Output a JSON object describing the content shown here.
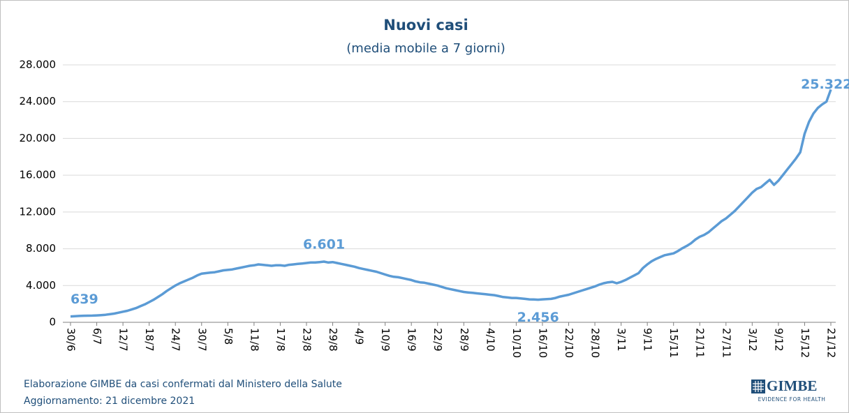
{
  "chart_data": {
    "type": "line",
    "title": "Nuovi casi",
    "subtitle": "(media mobile a 7 giorni)",
    "footer": [
      "Elaborazione GIMBE da casi confermati dal Ministero della Salute",
      "Aggiornamento: 21 dicembre 2021"
    ],
    "logo": {
      "name": "GIMBE",
      "tagline": "EVIDENCE FOR HEALTH"
    },
    "grid": true,
    "ylim": [
      0,
      28000
    ],
    "yticks": [
      0,
      {
        "value": 4000,
        "label": "4.000"
      },
      {
        "value": 8000,
        "label": "8.000"
      },
      {
        "value": 12000,
        "label": "12.000"
      },
      {
        "value": 16000,
        "label": "16.000"
      },
      {
        "value": 20000,
        "label": "20.000"
      },
      {
        "value": 24000,
        "label": "24.000"
      },
      {
        "value": 28000,
        "label": "28.000"
      }
    ],
    "categories": [
      "30/6",
      null,
      null,
      null,
      null,
      null,
      "6/7",
      null,
      null,
      null,
      null,
      null,
      "12/7",
      null,
      null,
      null,
      null,
      null,
      "18/7",
      null,
      null,
      null,
      null,
      null,
      "24/7",
      null,
      null,
      null,
      null,
      null,
      "30/7",
      null,
      null,
      null,
      null,
      null,
      "5/8",
      null,
      null,
      null,
      null,
      null,
      "11/8",
      null,
      null,
      null,
      null,
      null,
      "17/8",
      null,
      null,
      null,
      null,
      null,
      "23/8",
      null,
      null,
      null,
      null,
      null,
      "29/8",
      null,
      null,
      null,
      null,
      null,
      "4/9",
      null,
      null,
      null,
      null,
      null,
      "10/9",
      null,
      null,
      null,
      null,
      null,
      "16/9",
      null,
      null,
      null,
      null,
      null,
      "22/9",
      null,
      null,
      null,
      null,
      null,
      "28/9",
      null,
      null,
      null,
      null,
      null,
      "4/10",
      null,
      null,
      null,
      null,
      null,
      "10/10",
      null,
      null,
      null,
      null,
      null,
      "16/10",
      null,
      null,
      null,
      null,
      null,
      "22/10",
      null,
      null,
      null,
      null,
      null,
      "28/10",
      null,
      null,
      null,
      null,
      null,
      "3/11",
      null,
      null,
      null,
      null,
      null,
      "9/11",
      null,
      null,
      null,
      null,
      null,
      "15/11",
      null,
      null,
      null,
      null,
      null,
      "21/11",
      null,
      null,
      null,
      null,
      null,
      "27/11",
      null,
      null,
      null,
      null,
      null,
      "3/12",
      null,
      null,
      null,
      null,
      null,
      "9/12",
      null,
      null,
      null,
      null,
      null,
      "15/12",
      null,
      null,
      null,
      null,
      null,
      "21/12"
    ],
    "series": [
      {
        "name": "Nuovi casi",
        "color": "#5b9bd5",
        "values": [
          639,
          660,
          690,
          710,
          720,
          730,
          750,
          780,
          820,
          880,
          950,
          1050,
          1150,
          1250,
          1400,
          1550,
          1750,
          1950,
          2200,
          2450,
          2750,
          3050,
          3400,
          3700,
          4000,
          4250,
          4450,
          4650,
          4850,
          5100,
          5300,
          5350,
          5400,
          5450,
          5550,
          5650,
          5700,
          5750,
          5850,
          5950,
          6050,
          6150,
          6200,
          6300,
          6250,
          6200,
          6150,
          6200,
          6200,
          6150,
          6250,
          6300,
          6350,
          6400,
          6450,
          6500,
          6500,
          6550,
          6601,
          6500,
          6550,
          6450,
          6350,
          6250,
          6150,
          6050,
          5900,
          5800,
          5700,
          5600,
          5500,
          5350,
          5200,
          5050,
          4950,
          4900,
          4800,
          4700,
          4600,
          4450,
          4350,
          4300,
          4200,
          4100,
          4000,
          3850,
          3700,
          3600,
          3500,
          3400,
          3300,
          3250,
          3200,
          3150,
          3100,
          3050,
          3000,
          2950,
          2850,
          2750,
          2700,
          2650,
          2650,
          2600,
          2550,
          2500,
          2480,
          2456,
          2500,
          2520,
          2550,
          2650,
          2800,
          2900,
          3000,
          3150,
          3300,
          3450,
          3600,
          3750,
          3900,
          4100,
          4250,
          4350,
          4400,
          4250,
          4400,
          4600,
          4850,
          5100,
          5350,
          5900,
          6300,
          6650,
          6900,
          7100,
          7300,
          7400,
          7500,
          7750,
          8050,
          8300,
          8600,
          9000,
          9300,
          9500,
          9800,
          10200,
          10600,
          11000,
          11300,
          11700,
          12100,
          12600,
          13100,
          13600,
          14100,
          14500,
          14700,
          15100,
          15500,
          14950,
          15400,
          16000,
          16600,
          17200,
          17800,
          18500,
          20500,
          21800,
          22700,
          23300,
          23700,
          24000,
          25322
        ],
        "value_labels": [
          "639",
          null,
          null,
          null,
          null,
          null,
          null,
          null,
          null,
          null,
          null,
          null,
          null,
          null,
          null,
          null,
          null,
          null,
          null,
          null,
          null,
          null,
          null,
          null,
          null,
          null,
          null,
          null,
          null,
          null,
          null,
          null,
          null,
          null,
          null,
          null,
          null,
          null,
          null,
          null,
          null,
          null,
          null,
          null,
          null,
          null,
          null,
          null,
          null,
          null,
          null,
          null,
          null,
          null,
          null,
          null,
          null,
          null,
          "6.601",
          null,
          null,
          null,
          null,
          null,
          null,
          null,
          null,
          null,
          null,
          null,
          null,
          null,
          null,
          null,
          null,
          null,
          null,
          null,
          null,
          null,
          null,
          null,
          null,
          null,
          null,
          null,
          null,
          null,
          null,
          null,
          null,
          null,
          null,
          null,
          null,
          null,
          null,
          null,
          null,
          null,
          null,
          null,
          null,
          null,
          null,
          null,
          null,
          "2.456",
          null,
          null,
          null,
          null,
          null,
          null,
          null,
          null,
          null,
          null,
          null,
          null,
          null,
          null,
          null,
          null,
          null,
          null,
          null,
          null,
          null,
          null,
          null,
          null,
          null,
          null,
          null,
          null,
          null,
          null,
          null,
          null,
          null,
          null,
          null,
          null,
          null,
          null,
          null,
          null,
          null,
          null,
          null,
          null,
          null,
          null,
          null,
          null,
          null,
          null,
          null,
          null,
          null,
          null,
          null,
          null,
          null,
          null,
          null,
          null,
          null,
          null,
          null,
          null,
          null,
          "25.322"
        ]
      }
    ]
  }
}
